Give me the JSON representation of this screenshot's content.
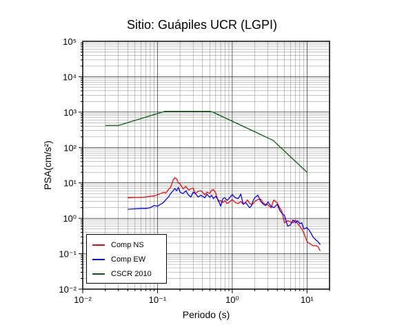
{
  "chart_data": {
    "type": "line",
    "title": "Sitio: Guápiles UCR (LGPI)",
    "xlabel": "Periodo (s)",
    "ylabel": "PSA(cm/s²)",
    "xscale": "log",
    "yscale": "log",
    "xlim": [
      0.01,
      20
    ],
    "ylim": [
      0.01,
      100000
    ],
    "grid": true,
    "legend_position": "bottom-left",
    "x_tick_labels": [
      "10⁻²",
      "10⁻¹",
      "10⁰",
      "10¹"
    ],
    "y_tick_labels": [
      "10⁻²",
      "10⁻¹",
      "10⁰",
      "10¹",
      "10²",
      "10³",
      "10⁴",
      "10⁵"
    ],
    "series": [
      {
        "name": "Comp NS",
        "color": "#ff0000",
        "x": [
          0.04,
          0.05,
          0.06,
          0.07,
          0.08,
          0.09,
          0.1,
          0.11,
          0.12,
          0.13,
          0.14,
          0.15,
          0.16,
          0.17,
          0.18,
          0.19,
          0.2,
          0.22,
          0.24,
          0.26,
          0.28,
          0.3,
          0.32,
          0.35,
          0.38,
          0.4,
          0.43,
          0.46,
          0.5,
          0.53,
          0.56,
          0.6,
          0.65,
          0.7,
          0.75,
          0.8,
          0.85,
          0.9,
          1.0,
          1.1,
          1.2,
          1.3,
          1.4,
          1.5,
          1.6,
          1.7,
          1.8,
          1.9,
          2.0,
          2.2,
          2.4,
          2.6,
          2.8,
          3.0,
          3.3,
          3.6,
          4.0,
          4.3,
          4.6,
          5.0,
          5.5,
          6.0,
          6.5,
          7.0,
          7.5,
          8.0,
          8.5,
          9.0,
          10.0,
          11.0,
          12.0,
          13.0,
          14.0,
          15.0
        ],
        "values": [
          3.8,
          3.9,
          3.9,
          4.0,
          4.2,
          4.3,
          4.6,
          5.0,
          5.4,
          5.2,
          6.5,
          7.5,
          11.5,
          14.0,
          13.0,
          10.0,
          9.5,
          6.8,
          8.0,
          6.3,
          6.8,
          7.2,
          5.0,
          5.8,
          6.0,
          5.5,
          4.6,
          5.5,
          5.0,
          6.2,
          6.5,
          5.2,
          3.0,
          3.2,
          2.8,
          3.2,
          2.6,
          2.8,
          3.4,
          2.8,
          2.6,
          3.0,
          2.5,
          2.8,
          3.3,
          2.7,
          2.4,
          2.6,
          3.0,
          3.4,
          3.5,
          2.7,
          2.5,
          2.4,
          2.0,
          3.3,
          2.7,
          2.0,
          1.6,
          0.75,
          0.85,
          0.8,
          0.75,
          0.9,
          0.7,
          0.6,
          0.5,
          0.4,
          0.22,
          0.19,
          0.17,
          0.17,
          0.16,
          0.12
        ]
      },
      {
        "name": "Comp EW",
        "color": "#0000ff",
        "x": [
          0.04,
          0.05,
          0.06,
          0.07,
          0.08,
          0.09,
          0.1,
          0.11,
          0.12,
          0.13,
          0.14,
          0.15,
          0.16,
          0.17,
          0.18,
          0.19,
          0.2,
          0.22,
          0.24,
          0.26,
          0.28,
          0.3,
          0.32,
          0.35,
          0.38,
          0.4,
          0.43,
          0.46,
          0.5,
          0.53,
          0.56,
          0.6,
          0.65,
          0.7,
          0.75,
          0.8,
          0.85,
          0.9,
          1.0,
          1.1,
          1.2,
          1.3,
          1.4,
          1.5,
          1.6,
          1.7,
          1.8,
          1.9,
          2.0,
          2.2,
          2.4,
          2.6,
          2.8,
          3.0,
          3.3,
          3.6,
          4.0,
          4.3,
          4.6,
          5.0,
          5.5,
          6.0,
          6.5,
          7.0,
          7.5,
          8.0,
          8.5,
          9.0,
          10.0,
          11.0,
          12.0,
          13.0,
          14.0,
          15.0
        ],
        "values": [
          1.8,
          1.85,
          1.9,
          1.9,
          2.0,
          2.3,
          2.2,
          2.5,
          2.8,
          3.4,
          4.0,
          5.0,
          5.8,
          7.0,
          6.0,
          7.5,
          5.5,
          5.0,
          6.0,
          4.5,
          4.0,
          5.5,
          5.0,
          4.0,
          4.5,
          4.2,
          3.8,
          4.8,
          3.9,
          4.5,
          3.6,
          4.2,
          3.3,
          2.2,
          3.6,
          3.8,
          3.2,
          3.6,
          4.7,
          3.8,
          3.6,
          4.8,
          2.5,
          2.8,
          2.4,
          2.0,
          2.2,
          3.2,
          3.8,
          4.5,
          3.0,
          2.5,
          2.3,
          2.9,
          2.2,
          2.0,
          2.5,
          1.7,
          1.4,
          1.2,
          0.6,
          0.65,
          0.9,
          0.75,
          0.85,
          0.7,
          0.75,
          0.5,
          0.55,
          0.42,
          0.3,
          0.25,
          0.22,
          0.18
        ]
      },
      {
        "name": "CSCR 2010",
        "color": "#006400",
        "x": [
          0.02,
          0.03,
          0.125,
          0.5,
          0.55,
          3.5,
          10.0
        ],
        "values": [
          420,
          420,
          1050,
          1050,
          1000,
          160,
          20
        ]
      }
    ]
  }
}
